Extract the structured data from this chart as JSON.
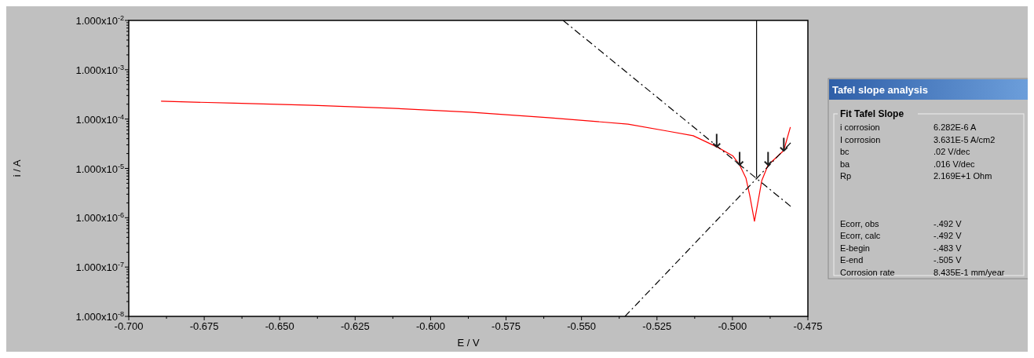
{
  "chart_data": [
    {
      "type": "line",
      "xlabel": "E / V",
      "ylabel": "i / A",
      "log": "y",
      "xlim": [
        -0.7,
        -0.475
      ],
      "xticks": [
        {
          "value": -0.7,
          "label": "-0.700"
        },
        -0.675,
        {
          "value": -0.65,
          "label": "-0.650"
        },
        -0.625,
        {
          "value": -0.6,
          "label": "-0.600"
        },
        -0.575,
        {
          "value": -0.55,
          "label": "-0.550"
        },
        -0.525,
        {
          "value": -0.5,
          "label": "-0.500"
        },
        -0.475
      ],
      "ylim": [
        1e-08,
        0.01
      ],
      "yticks": [
        {
          "value": 1e-08,
          "label": "1.000x10$^{-8}$"
        },
        {
          "value": 1e-07,
          "label": "1.000x10$^{-7}$"
        },
        {
          "value": 1e-06,
          "label": "1.000x10$^{-6}$"
        },
        {
          "value": 1e-05,
          "label": "1.000x10$^{-5}$"
        },
        {
          "value": 0.0001,
          "label": "1.000x10$^{-4}$"
        },
        {
          "value": 0.001,
          "label": "1.000x10$^{-3}$"
        },
        {
          "value": 0.01,
          "label": "1.000x10$^{-2}$"
        }
      ],
      "grid": false,
      "series": [
        {
          "type": "line",
          "color": "#ff0000",
          "x": [
            -0.6893,
            -0.665,
            -0.639,
            -0.613,
            -0.587,
            -0.561,
            -0.5346,
            -0.5215,
            -0.513,
            -0.505,
            -0.4999,
            -0.4976,
            -0.4955,
            -0.4942,
            -0.4927,
            -0.4912,
            -0.4903,
            -0.4882,
            -0.483,
            -0.4808
          ],
          "values": [
            0.00023,
            0.00021,
            0.00019,
            0.000166,
            0.000138,
            0.000107,
            7.9e-05,
            5.7e-05,
            4.6e-05,
            2.7e-05,
            1.8e-05,
            1.17e-05,
            6.3e-06,
            2.7e-06,
            8.5e-07,
            2.7e-06,
            5.6e-06,
            1.17e-05,
            2.3e-05,
            6.9e-05
          ]
        },
        {
          "type": "line",
          "color": "#000000",
          "line_style": "dashed",
          "x": [
            -0.5561,
            -0.4807
          ],
          "values": [
            0.01,
            1.7e-06
          ]
        },
        {
          "type": "line",
          "color": "#000000",
          "line_style": "dashed",
          "x": [
            -0.5356,
            -0.4807
          ],
          "values": [
            1e-08,
            3.3e-05
          ]
        },
        {
          "type": "line",
          "color": "#000000",
          "line_style": "solid",
          "x": [
            -0.492,
            -0.492
          ],
          "values": [
            0.01,
            6.6e-06
          ]
        }
      ],
      "annotations": [
        {
          "text": "↓",
          "x": -0.5052,
          "y": 2.7e-05
        },
        {
          "text": "↓",
          "x": -0.4976,
          "y": 1.17e-05
        },
        {
          "text": "↓",
          "x": -0.4882,
          "y": 1.17e-05
        },
        {
          "text": "↓",
          "x": -0.483,
          "y": 2.3e-05
        }
      ]
    },
    {
      "type": "other",
      "title": "Tafel slope analysis",
      "subtitle": "Fit Tafel Slope",
      "annotations": [
        "i corrosion",
        "6.282E-6  A",
        "I corrosion",
        "3.631E-5  A/cm2",
        "bc",
        ".02 V/dec",
        "ba",
        ".016 V/dec",
        "Rp",
        "2.169E+1 Ohm",
        "Ecorr, obs",
        "-.492  V",
        "Ecorr, calc",
        "-.492 V",
        "E-begin",
        "-.483 V",
        "E-end",
        "-.505 V",
        "Corrosion rate",
        "8.435E-1 mm/year"
      ]
    }
  ]
}
